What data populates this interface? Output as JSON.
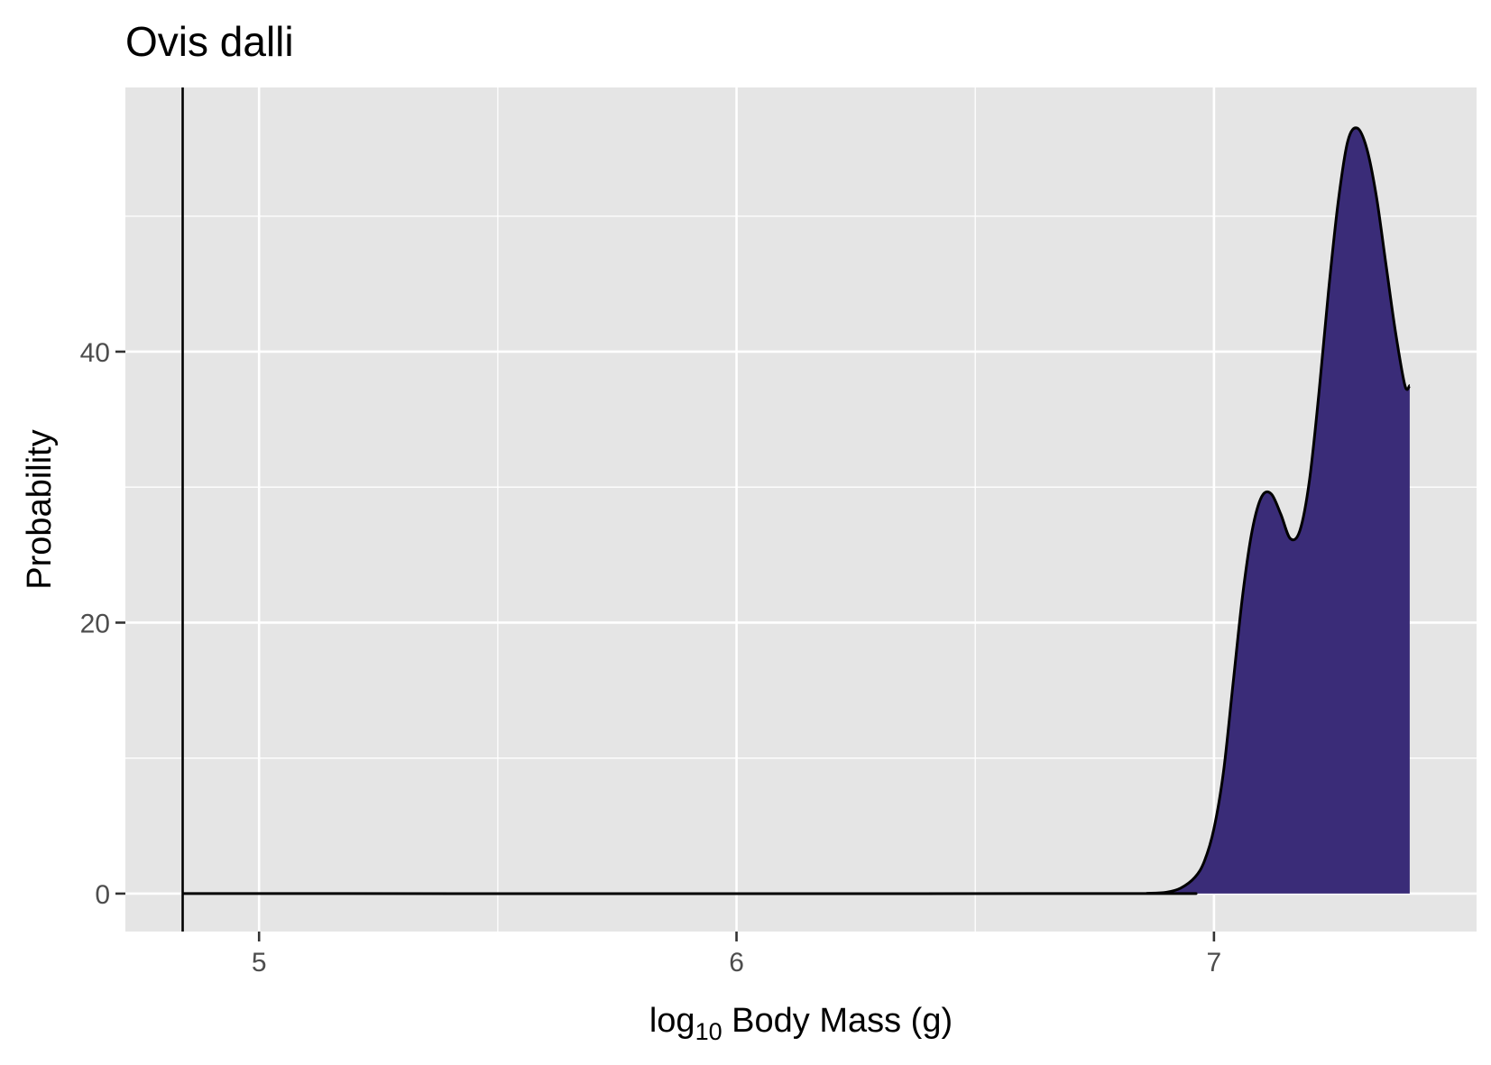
{
  "chart_data": {
    "type": "area",
    "title": "Ovis dalli",
    "xlabel_parts": {
      "base": "log",
      "subscript": "10",
      "rest": " Body Mass (g)"
    },
    "ylabel": "Probability",
    "xlim": [
      4.72,
      7.55
    ],
    "ylim": [
      -2.8,
      59.5
    ],
    "x_ticks": [
      5,
      6,
      7
    ],
    "x_tick_labels": [
      "5",
      "6",
      "7"
    ],
    "x_minor_ticks": [
      5.5,
      6.5
    ],
    "y_ticks": [
      0,
      20,
      40
    ],
    "y_tick_labels": [
      "0",
      "20",
      "40"
    ],
    "y_minor_ticks": [
      10,
      30,
      50
    ],
    "grid": true,
    "background": "#e5e5e5",
    "fill_color": "#3a2c78",
    "line_color": "#000000",
    "vline_x": 4.84,
    "density": {
      "x": [
        4.84,
        6.8,
        6.86,
        6.9,
        6.93,
        6.96,
        6.98,
        7.0,
        7.02,
        7.04,
        7.06,
        7.08,
        7.1,
        7.12,
        7.14,
        7.16,
        7.18,
        7.2,
        7.22,
        7.24,
        7.26,
        7.28,
        7.3,
        7.32,
        7.34,
        7.36,
        7.38,
        7.4,
        7.41
      ],
      "y": [
        0,
        0,
        0.02,
        0.1,
        0.4,
        1.2,
        2.4,
        4.8,
        9.0,
        15.5,
        22.0,
        26.8,
        29.3,
        29.5,
        28.0,
        26.2,
        26.8,
        30.5,
        37.0,
        44.5,
        51.0,
        55.5,
        56.5,
        55.0,
        51.5,
        46.5,
        41.5,
        37.5,
        37.5
      ]
    }
  }
}
